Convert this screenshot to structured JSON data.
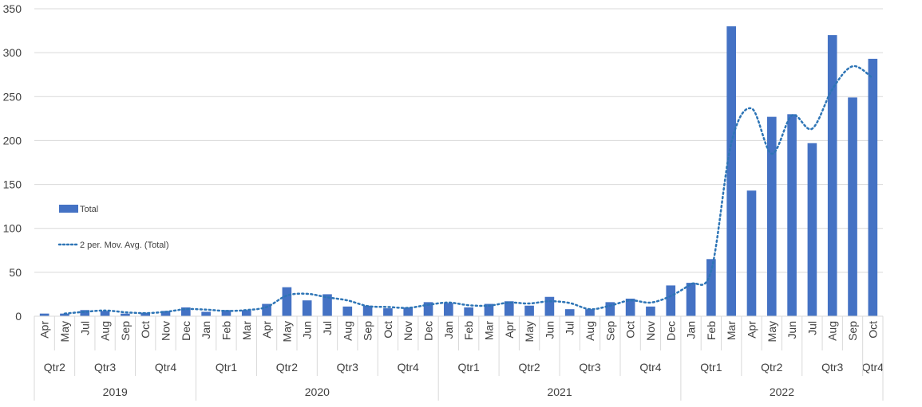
{
  "chart_data": {
    "type": "bar",
    "ylim": [
      0,
      350
    ],
    "yticks": [
      0,
      50,
      100,
      150,
      200,
      250,
      300,
      350
    ],
    "grid": true,
    "legend_position": "left",
    "categories": [
      "Apr",
      "May",
      "Jul",
      "Aug",
      "Sep",
      "Oct",
      "Nov",
      "Dec",
      "Jan",
      "Feb",
      "Mar",
      "Apr",
      "May",
      "Jun",
      "Jul",
      "Aug",
      "Sep",
      "Oct",
      "Nov",
      "Dec",
      "Jan",
      "Feb",
      "Mar",
      "Apr",
      "May",
      "Jun",
      "Jul",
      "Aug",
      "Sep",
      "Oct",
      "Nov",
      "Dec",
      "Jan",
      "Feb",
      "Mar",
      "Apr",
      "May",
      "Jun",
      "Jul",
      "Aug",
      "Sep",
      "Oct"
    ],
    "quarters": [
      {
        "label": "Qtr2",
        "span": 2
      },
      {
        "label": "Qtr3",
        "span": 3
      },
      {
        "label": "Qtr4",
        "span": 3
      },
      {
        "label": "Qtr1",
        "span": 3
      },
      {
        "label": "Qtr2",
        "span": 3
      },
      {
        "label": "Qtr3",
        "span": 3
      },
      {
        "label": "Qtr4",
        "span": 3
      },
      {
        "label": "Qtr1",
        "span": 3
      },
      {
        "label": "Qtr2",
        "span": 3
      },
      {
        "label": "Qtr3",
        "span": 3
      },
      {
        "label": "Qtr4",
        "span": 3
      },
      {
        "label": "Qtr1",
        "span": 3
      },
      {
        "label": "Qtr2",
        "span": 3
      },
      {
        "label": "Qtr3",
        "span": 3
      },
      {
        "label": "Qtr4",
        "span": 1
      }
    ],
    "years": [
      {
        "label": "2019",
        "span": 8
      },
      {
        "label": "2020",
        "span": 12
      },
      {
        "label": "2021",
        "span": 12
      },
      {
        "label": "2022",
        "span": 10
      }
    ],
    "series": [
      {
        "name": "Total",
        "type": "bar",
        "color": "#4472C4",
        "values": [
          3,
          3,
          7,
          6,
          3,
          4,
          6,
          10,
          5,
          7,
          7,
          14,
          33,
          18,
          25,
          11,
          12,
          9,
          10,
          16,
          15,
          10,
          14,
          17,
          12,
          22,
          8,
          8,
          16,
          20,
          11,
          35,
          38,
          65,
          330,
          143,
          227,
          230,
          197,
          320,
          249,
          293
        ]
      },
      {
        "name": "2 per. Mov. Avg. (Total)",
        "type": "line",
        "style": "dotted",
        "color": "#2E75B6",
        "values": [
          null,
          3,
          5,
          6.5,
          4.5,
          3.5,
          5,
          8,
          7.5,
          6,
          7,
          10.5,
          23.5,
          25.5,
          21.5,
          18,
          11.5,
          10.5,
          9.5,
          13,
          15.5,
          12.5,
          12,
          15.5,
          14.5,
          17,
          15,
          8,
          12,
          18,
          15.5,
          23,
          36.5,
          51.5,
          197.5,
          236.5,
          185,
          228.5,
          213.5,
          258.5,
          284.5,
          271
        ]
      }
    ]
  }
}
